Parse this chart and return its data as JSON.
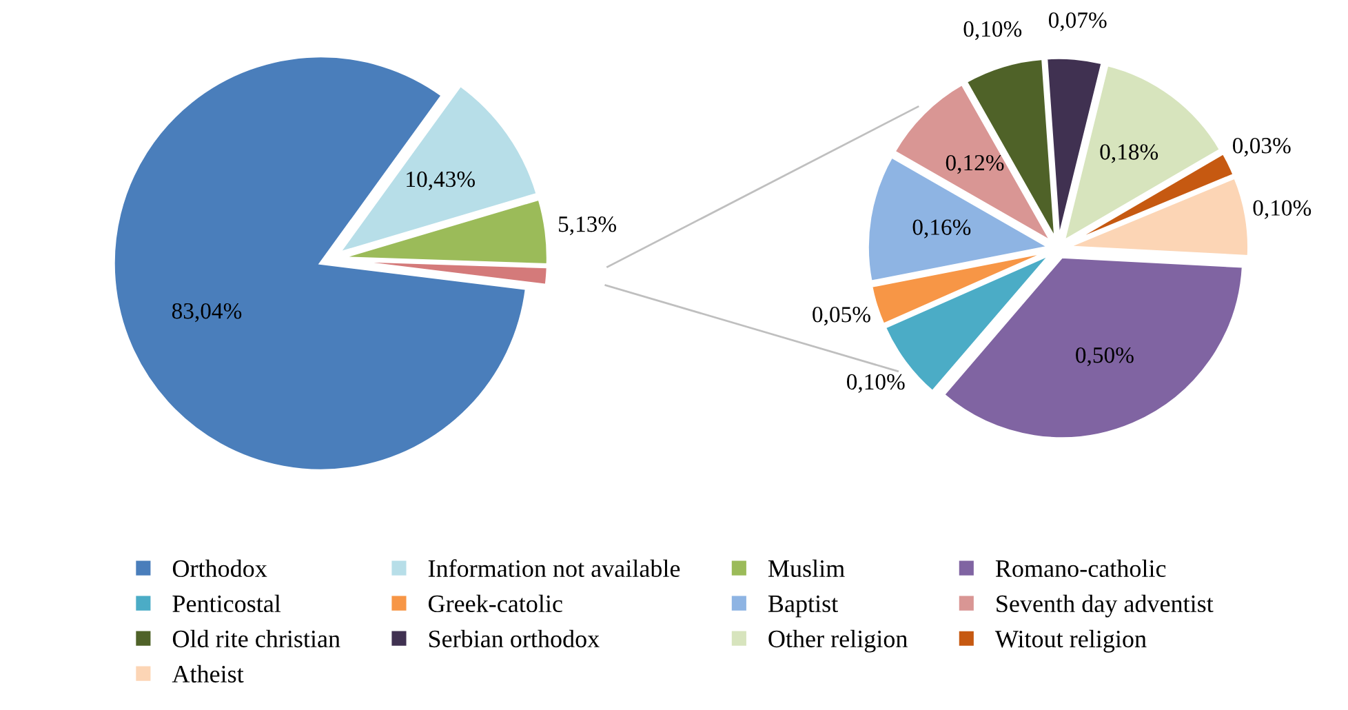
{
  "chart_data": [
    {
      "type": "pie",
      "categories": [
        "Orthodox",
        "Information not available",
        "Muslim",
        null
      ],
      "values": [
        83.04,
        10.43,
        5.13,
        1.41
      ],
      "value_labels": [
        "83,04%",
        "10,43%",
        "5,13%",
        null
      ],
      "colors": [
        "#4a7ebb",
        "#b7dee8",
        "#9bbb59",
        "#d47a7a"
      ],
      "legend": "bottom"
    },
    {
      "type": "pie",
      "categories": [
        "Romano-catholic",
        "Penticostal",
        "Greek-catolic",
        "Baptist",
        "Seventh day adventist",
        "Old rite christian",
        "Serbian orthodox",
        "Other religion",
        "Witout religion",
        "Atheist"
      ],
      "values": [
        0.5,
        0.1,
        0.05,
        0.16,
        0.12,
        0.1,
        0.07,
        0.18,
        0.03,
        0.1
      ],
      "value_labels": [
        "0,50%",
        "0,10%",
        "0,05%",
        "0,16%",
        "0,12%",
        "0,10%",
        "0,07%",
        "0,18%",
        "0,03%",
        "0,10%"
      ],
      "colors": [
        "#8064a2",
        "#4bacc6",
        "#f79646",
        "#8eb4e3",
        "#d99694",
        "#4f6228",
        "#403151",
        "#d7e4bd",
        "#c65911",
        "#fcd5b5"
      ],
      "legend": "bottom"
    }
  ]
}
